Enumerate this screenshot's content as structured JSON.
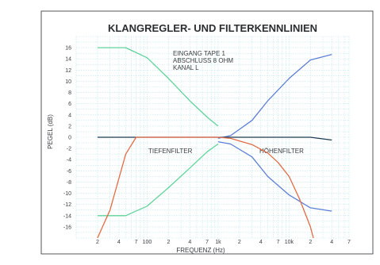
{
  "chart_data": {
    "type": "line",
    "title": "KLANGREGLER- UND FILTERKENNLINIEN",
    "xlabel": "FREQUENZ (Hz)",
    "ylabel": "PEGEL (dB)",
    "x_scale": "log",
    "xlim": [
      10,
      70000
    ],
    "ylim": [
      -18,
      18
    ],
    "grid": true,
    "y_ticks": [
      16,
      14,
      12,
      10,
      8,
      6,
      4,
      2,
      0,
      -2,
      -4,
      -6,
      -8,
      -10,
      -12,
      -14,
      -16
    ],
    "x_ticks": [
      {
        "value": 20,
        "label": "2"
      },
      {
        "value": 40,
        "label": "4"
      },
      {
        "value": 70,
        "label": "7"
      },
      {
        "value": 100,
        "label": "100"
      },
      {
        "value": 200,
        "label": "2"
      },
      {
        "value": 400,
        "label": "4"
      },
      {
        "value": 700,
        "label": "7"
      },
      {
        "value": 1000,
        "label": "1k"
      },
      {
        "value": 2000,
        "label": "2"
      },
      {
        "value": 4000,
        "label": "4"
      },
      {
        "value": 7000,
        "label": "7"
      },
      {
        "value": 10000,
        "label": "10k"
      },
      {
        "value": 20000,
        "label": "2"
      },
      {
        "value": 40000,
        "label": "4"
      },
      {
        "value": 70000,
        "label": "7"
      }
    ],
    "notes": [
      "EINGANG TAPE 1",
      "ABSCHLUSS 8 OHM",
      "KANAL L"
    ],
    "annotations": [
      "TIEFENFILTER",
      "HÖHENFILTER"
    ],
    "series": [
      {
        "color": "#5fd39a",
        "points": [
          [
            20,
            16
          ],
          [
            50,
            16
          ],
          [
            100,
            14.2
          ],
          [
            200,
            10.5
          ],
          [
            400,
            6.5
          ],
          [
            700,
            3.6
          ],
          [
            1000,
            2
          ]
        ]
      },
      {
        "color": "#5fd39a",
        "points": [
          [
            20,
            -14
          ],
          [
            50,
            -14
          ],
          [
            100,
            -12.3
          ],
          [
            200,
            -9
          ],
          [
            400,
            -5.5
          ],
          [
            700,
            -2.6
          ],
          [
            1000,
            -1.2
          ]
        ]
      },
      {
        "color": "#5e7fd6",
        "points": [
          [
            1000,
            -0.2
          ],
          [
            1500,
            0.3
          ],
          [
            3000,
            3
          ],
          [
            5000,
            6.5
          ],
          [
            10000,
            10.5
          ],
          [
            20000,
            13.8
          ],
          [
            40000,
            14.8
          ]
        ]
      },
      {
        "color": "#5e7fd6",
        "points": [
          [
            1000,
            -0.8
          ],
          [
            1500,
            -1.2
          ],
          [
            3000,
            -3.5
          ],
          [
            5000,
            -7
          ],
          [
            10000,
            -10.3
          ],
          [
            20000,
            -12.6
          ],
          [
            40000,
            -13.2
          ]
        ]
      },
      {
        "color": "#1c3a52",
        "points": [
          [
            20,
            0
          ],
          [
            1000,
            0
          ],
          [
            10000,
            0
          ],
          [
            20000,
            0
          ],
          [
            40000,
            -0.5
          ]
        ]
      },
      {
        "color": "#e36b45",
        "points": [
          [
            20,
            -18
          ],
          [
            30,
            -13
          ],
          [
            50,
            -3
          ],
          [
            70,
            0
          ],
          [
            200,
            0
          ],
          [
            1000,
            0
          ],
          [
            1500,
            -0.2
          ],
          [
            3000,
            -1.3
          ],
          [
            5000,
            -2.8
          ],
          [
            7000,
            -4.5
          ],
          [
            10000,
            -7
          ],
          [
            14000,
            -11
          ],
          [
            20000,
            -16
          ],
          [
            22000,
            -18
          ]
        ]
      }
    ]
  },
  "colors": {
    "background": "#ffffff",
    "grid": "#bfe6e8",
    "frame": "#2b2d2f"
  }
}
